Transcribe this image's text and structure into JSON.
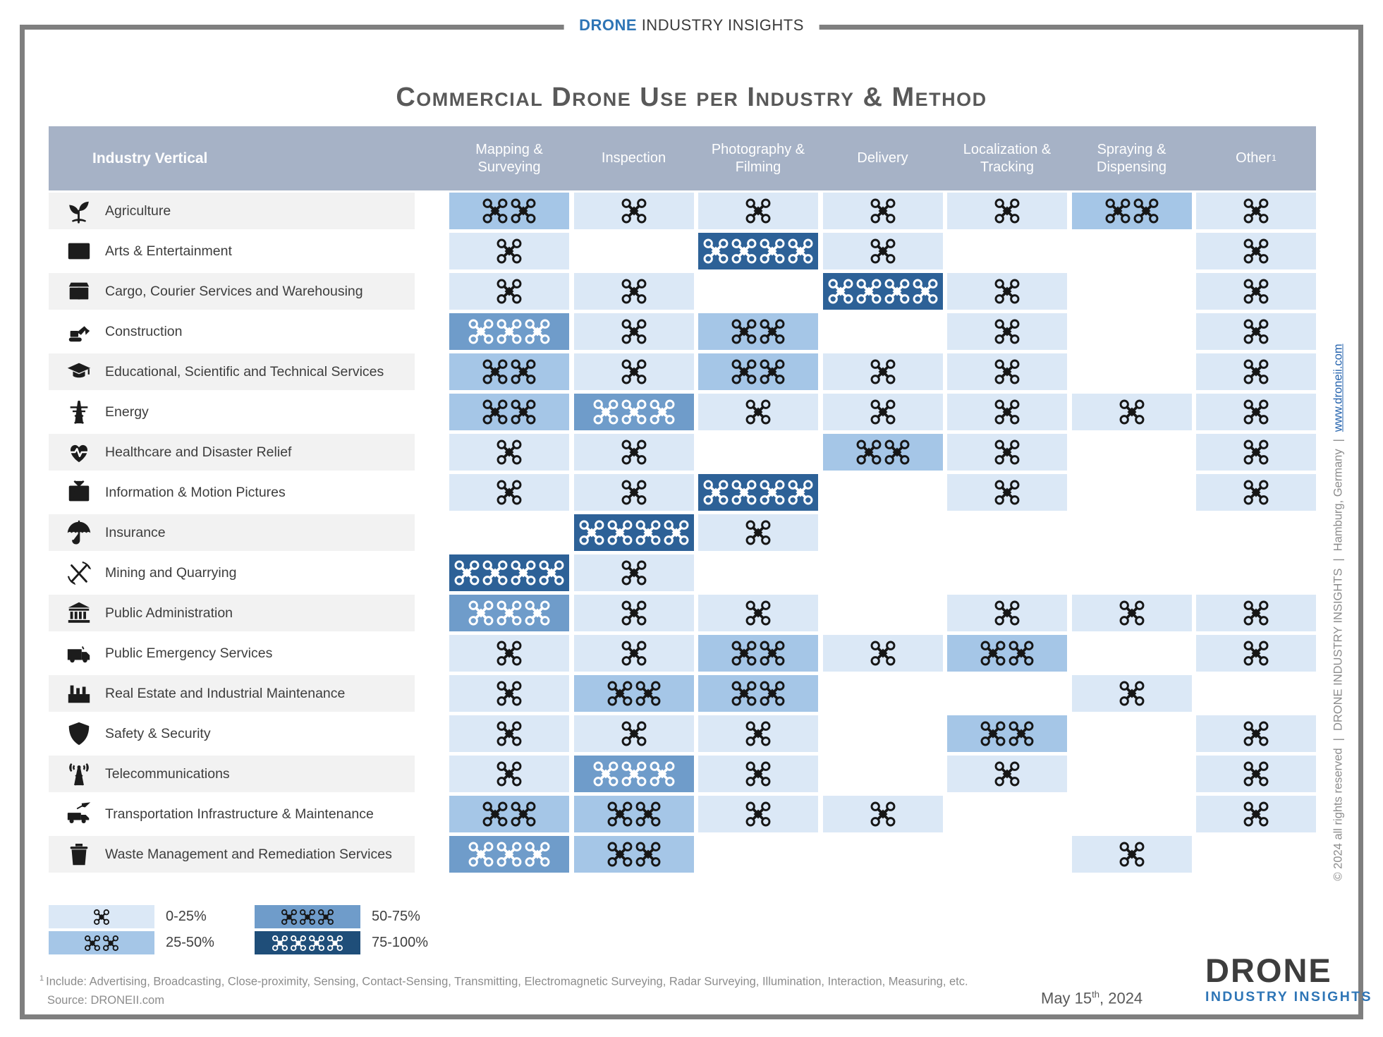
{
  "brand": {
    "highlight": "DRONE",
    "rest": " INDUSTRY INSIGHTS"
  },
  "title": "Commercial Drone Use per Industry & Method",
  "palette": {
    "level1": "#dbe8f6",
    "level2": "#a5c6e7",
    "level3": "#6f9cca",
    "level4": "#2d6197",
    "legend_level4": "#1f4e79",
    "header_bg": "#a6b2c6",
    "frame": "#7f7f7f",
    "brand_blue": "#2e75b6",
    "title_gray": "#595959"
  },
  "table": {
    "corner_header": "Industry Vertical",
    "other_marker": "1",
    "columns": [
      "Mapping & Surveying",
      "Inspection",
      "Photography & Filming",
      "Delivery",
      "Localization & Tracking",
      "Spraying & Dispensing",
      "Other"
    ],
    "rows": [
      {
        "icon": "sprout",
        "label": "Agriculture",
        "cells": [
          {
            "drones": 2,
            "level": 2
          },
          {
            "drones": 1,
            "level": 1
          },
          {
            "drones": 1,
            "level": 1
          },
          {
            "drones": 1,
            "level": 1
          },
          {
            "drones": 1,
            "level": 1
          },
          {
            "drones": 2,
            "level": 2
          },
          {
            "drones": 1,
            "level": 1
          }
        ]
      },
      {
        "icon": "film",
        "label": "Arts & Entertainment",
        "cells": [
          {
            "drones": 1,
            "level": 1
          },
          null,
          {
            "drones": 4,
            "level": 4
          },
          {
            "drones": 1,
            "level": 1
          },
          null,
          null,
          {
            "drones": 1,
            "level": 1
          }
        ]
      },
      {
        "icon": "parcel",
        "label": "Cargo, Courier Services and Warehousing",
        "cells": [
          {
            "drones": 1,
            "level": 1
          },
          {
            "drones": 1,
            "level": 1
          },
          null,
          {
            "drones": 4,
            "level": 4
          },
          {
            "drones": 1,
            "level": 1
          },
          null,
          {
            "drones": 1,
            "level": 1
          }
        ]
      },
      {
        "icon": "excavator",
        "label": "Construction",
        "cells": [
          {
            "drones": 3,
            "level": 3
          },
          {
            "drones": 1,
            "level": 1
          },
          {
            "drones": 2,
            "level": 2
          },
          null,
          {
            "drones": 1,
            "level": 1
          },
          null,
          {
            "drones": 1,
            "level": 1
          }
        ]
      },
      {
        "icon": "graduation-cap",
        "label": "Educational, Scientific and Technical Services",
        "cells": [
          {
            "drones": 2,
            "level": 2
          },
          {
            "drones": 1,
            "level": 1
          },
          {
            "drones": 2,
            "level": 2
          },
          {
            "drones": 1,
            "level": 1
          },
          {
            "drones": 1,
            "level": 1
          },
          null,
          {
            "drones": 1,
            "level": 1
          }
        ]
      },
      {
        "icon": "power-tower",
        "label": "Energy",
        "cells": [
          {
            "drones": 2,
            "level": 2
          },
          {
            "drones": 3,
            "level": 3
          },
          {
            "drones": 1,
            "level": 1
          },
          {
            "drones": 1,
            "level": 1
          },
          {
            "drones": 1,
            "level": 1
          },
          {
            "drones": 1,
            "level": 1
          },
          {
            "drones": 1,
            "level": 1
          }
        ]
      },
      {
        "icon": "heart-pulse",
        "label": "Healthcare and Disaster Relief",
        "cells": [
          {
            "drones": 1,
            "level": 1
          },
          {
            "drones": 1,
            "level": 1
          },
          null,
          {
            "drones": 2,
            "level": 2
          },
          {
            "drones": 1,
            "level": 1
          },
          null,
          {
            "drones": 1,
            "level": 1
          }
        ]
      },
      {
        "icon": "tv",
        "label": "Information & Motion Pictures",
        "cells": [
          {
            "drones": 1,
            "level": 1
          },
          {
            "drones": 1,
            "level": 1
          },
          {
            "drones": 4,
            "level": 4
          },
          null,
          {
            "drones": 1,
            "level": 1
          },
          null,
          {
            "drones": 1,
            "level": 1
          }
        ]
      },
      {
        "icon": "umbrella",
        "label": "Insurance",
        "cells": [
          null,
          {
            "drones": 4,
            "level": 4
          },
          {
            "drones": 1,
            "level": 1
          },
          null,
          null,
          null,
          null
        ]
      },
      {
        "icon": "pickaxe",
        "label": "Mining and Quarrying",
        "cells": [
          {
            "drones": 4,
            "level": 4
          },
          {
            "drones": 1,
            "level": 1
          },
          null,
          null,
          null,
          null,
          null
        ]
      },
      {
        "icon": "government",
        "label": "Public Administration",
        "cells": [
          {
            "drones": 3,
            "level": 3
          },
          {
            "drones": 1,
            "level": 1
          },
          {
            "drones": 1,
            "level": 1
          },
          null,
          {
            "drones": 1,
            "level": 1
          },
          {
            "drones": 1,
            "level": 1
          },
          {
            "drones": 1,
            "level": 1
          }
        ]
      },
      {
        "icon": "ambulance",
        "label": "Public Emergency Services",
        "cells": [
          {
            "drones": 1,
            "level": 1
          },
          {
            "drones": 1,
            "level": 1
          },
          {
            "drones": 2,
            "level": 2
          },
          {
            "drones": 1,
            "level": 1
          },
          {
            "drones": 2,
            "level": 2
          },
          null,
          {
            "drones": 1,
            "level": 1
          }
        ]
      },
      {
        "icon": "factory",
        "label": "Real Estate and Industrial Maintenance",
        "cells": [
          {
            "drones": 1,
            "level": 1
          },
          {
            "drones": 2,
            "level": 2
          },
          {
            "drones": 2,
            "level": 2
          },
          null,
          null,
          {
            "drones": 1,
            "level": 1
          },
          null
        ]
      },
      {
        "icon": "shield",
        "label": "Safety & Security",
        "cells": [
          {
            "drones": 1,
            "level": 1
          },
          {
            "drones": 1,
            "level": 1
          },
          {
            "drones": 1,
            "level": 1
          },
          null,
          {
            "drones": 2,
            "level": 2
          },
          null,
          {
            "drones": 1,
            "level": 1
          }
        ]
      },
      {
        "icon": "antenna",
        "label": "Telecommunications",
        "cells": [
          {
            "drones": 1,
            "level": 1
          },
          {
            "drones": 3,
            "level": 3
          },
          {
            "drones": 1,
            "level": 1
          },
          null,
          {
            "drones": 1,
            "level": 1
          },
          null,
          {
            "drones": 1,
            "level": 1
          }
        ]
      },
      {
        "icon": "transport",
        "label": "Transportation Infrastructure & Maintenance",
        "cells": [
          {
            "drones": 2,
            "level": 2
          },
          {
            "drones": 2,
            "level": 2
          },
          {
            "drones": 1,
            "level": 1
          },
          {
            "drones": 1,
            "level": 1
          },
          null,
          null,
          {
            "drones": 1,
            "level": 1
          }
        ]
      },
      {
        "icon": "waste",
        "label": "Waste Management and Remediation Services",
        "cells": [
          {
            "drones": 3,
            "level": 3
          },
          {
            "drones": 2,
            "level": 2
          },
          null,
          null,
          null,
          {
            "drones": 1,
            "level": 1
          },
          null
        ]
      }
    ]
  },
  "legend": {
    "items": [
      {
        "drones": 1,
        "level": 1,
        "label": "0-25%"
      },
      {
        "drones": 2,
        "level": 2,
        "label": "25-50%"
      },
      {
        "drones": 3,
        "level": 3,
        "label": "50-75%"
      },
      {
        "drones": 4,
        "level": 4,
        "label": "75-100%"
      }
    ]
  },
  "footnote": {
    "marker": "1",
    "text": "Include: Advertising, Broadcasting, Close-proximity, Sensing, Contact-Sensing, Transmitting, Electromagnetic Surveying, Radar Surveying, Illumination, Interaction, Measuring, etc.",
    "source": "Source: DRONEII.com"
  },
  "date": {
    "prefix": "May 15",
    "sup": "th",
    "suffix": ", 2024"
  },
  "logo": {
    "top": "DRONE",
    "bottom": "INDUSTRY  INSIGHTS"
  },
  "sidebar": {
    "copyright": "© 2024 all rights reserved",
    "brand": "DRONE INDUSTRY INSIGHTS",
    "location": "Hamburg, Germany",
    "link": "www.droneii.com",
    "separator": "|"
  }
}
